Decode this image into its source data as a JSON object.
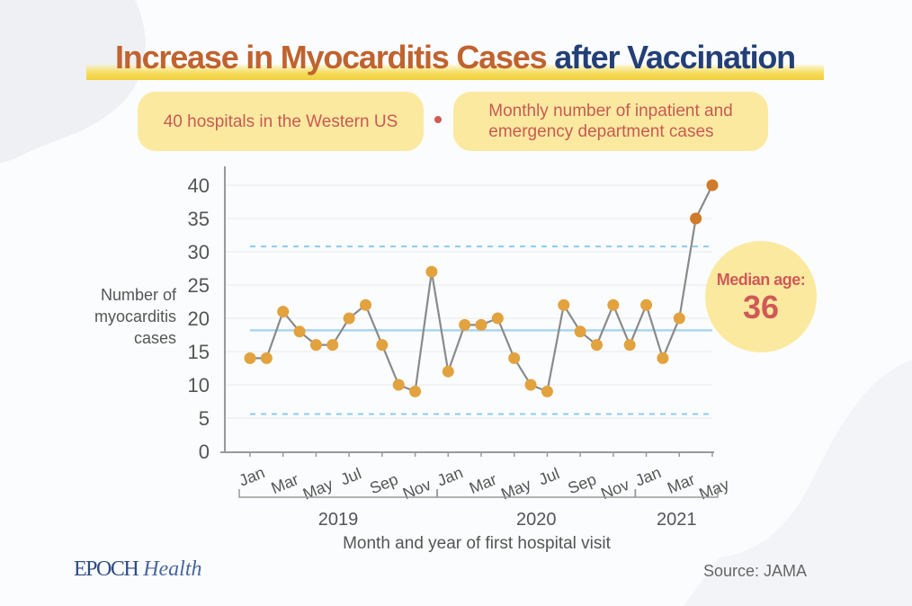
{
  "title": {
    "part1": "Increase in Myocarditis Cases",
    "part2": "after Vaccination"
  },
  "info": {
    "pill1": "40 hospitals in the Western US",
    "pill2_line1": "Monthly number of inpatient and",
    "pill2_line2": "emergency department cases"
  },
  "median": {
    "label": "Median age:",
    "value": "36"
  },
  "footer": {
    "logo_part1": "EPOCH",
    "logo_part2": "Health",
    "source": "Source: JAMA"
  },
  "colors": {
    "title_orange": "#c0632e",
    "title_navy": "#233f77",
    "pill_fill": "#fbe9a0",
    "pill_text": "#cf5a57",
    "point": "#e2a23e",
    "point_highlight": "#d07a2a",
    "line": "#8a8a8a",
    "mean_line": "#a9d6ef",
    "limit_line": "#8ccbee"
  },
  "chart_data": {
    "type": "line",
    "title": "Increase in Myocarditis Cases after Vaccination",
    "xlabel": "Month and year of first hospital visit",
    "ylabel_lines": [
      "Number of",
      "myocarditis",
      "cases"
    ],
    "ylim": [
      0,
      40
    ],
    "yticks": [
      0,
      5,
      10,
      15,
      20,
      25,
      30,
      35,
      40
    ],
    "grid": true,
    "x": [
      "Jan 2019",
      "Feb 2019",
      "Mar 2019",
      "Apr 2019",
      "May 2019",
      "Jun 2019",
      "Jul 2019",
      "Aug 2019",
      "Sep 2019",
      "Oct 2019",
      "Nov 2019",
      "Dec 2019",
      "Jan 2020",
      "Feb 2020",
      "Mar 2020",
      "Apr 2020",
      "May 2020",
      "Jun 2020",
      "Jul 2020",
      "Aug 2020",
      "Sep 2020",
      "Oct 2020",
      "Nov 2020",
      "Dec 2020",
      "Jan 2021",
      "Feb 2021",
      "Mar 2021",
      "Apr 2021",
      "May 2021"
    ],
    "series": [
      {
        "name": "Monthly myocarditis cases",
        "values": [
          14,
          14,
          21,
          18,
          16,
          16,
          20,
          22,
          16,
          10,
          9,
          27,
          12,
          19,
          19,
          20,
          14,
          10,
          9,
          22,
          18,
          16,
          22,
          16,
          22,
          14,
          20,
          35,
          40
        ],
        "highlighted_indices": [
          27,
          28
        ]
      }
    ],
    "reference_lines": [
      {
        "name": "mean",
        "value": 18.2,
        "style": "solid"
      },
      {
        "name": "upper control limit",
        "value": 30.8,
        "style": "dashed"
      },
      {
        "name": "lower control limit",
        "value": 5.6,
        "style": "dashed"
      }
    ],
    "xtick_labels": [
      "Jan",
      "Mar",
      "May",
      "Jul",
      "Sep",
      "Nov",
      "Jan",
      "Mar",
      "May",
      "Jul",
      "Sep",
      "Nov",
      "Jan",
      "Mar",
      "May"
    ],
    "xtick_indices": [
      0,
      2,
      4,
      6,
      8,
      10,
      12,
      14,
      16,
      18,
      20,
      22,
      24,
      26,
      28
    ],
    "year_groups": [
      {
        "label": "2019",
        "start": 0,
        "end": 11
      },
      {
        "label": "2020",
        "start": 12,
        "end": 23
      },
      {
        "label": "2021",
        "start": 24,
        "end": 28
      }
    ],
    "annotation": "Median age: 36"
  }
}
